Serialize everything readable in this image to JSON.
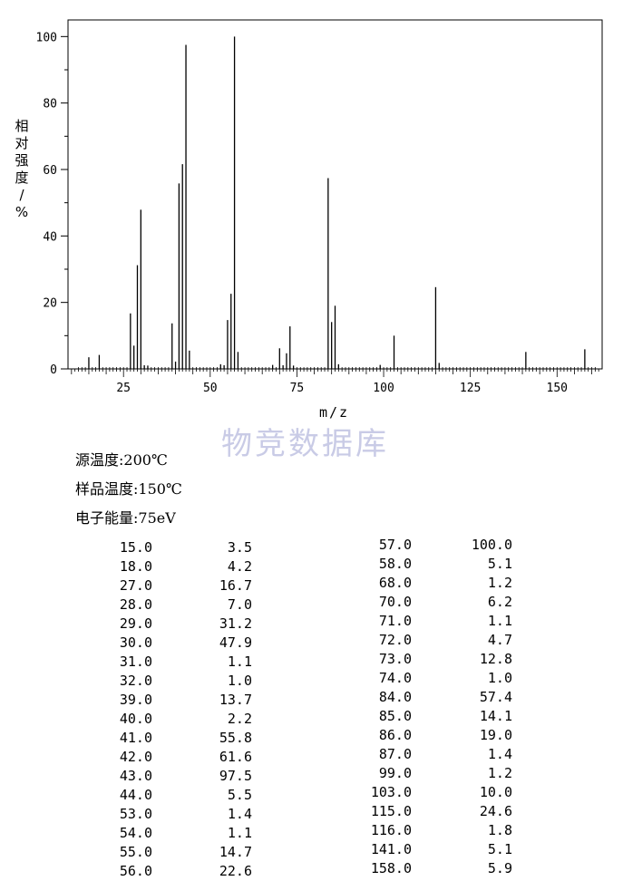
{
  "chart_data": {
    "type": "bar",
    "xlabel": "m/z",
    "ylabel": "相对强度/%",
    "xlim": [
      9,
      163
    ],
    "ylim": [
      0,
      105
    ],
    "xticks": [
      25,
      50,
      75,
      100,
      125,
      150
    ],
    "yticks": [
      0,
      20,
      40,
      60,
      80,
      100
    ],
    "grid": false,
    "peaks": [
      {
        "mz": 15.0,
        "intensity": 3.5
      },
      {
        "mz": 18.0,
        "intensity": 4.2
      },
      {
        "mz": 27.0,
        "intensity": 16.7
      },
      {
        "mz": 28.0,
        "intensity": 7.0
      },
      {
        "mz": 29.0,
        "intensity": 31.2
      },
      {
        "mz": 30.0,
        "intensity": 47.9
      },
      {
        "mz": 31.0,
        "intensity": 1.1
      },
      {
        "mz": 32.0,
        "intensity": 1.0
      },
      {
        "mz": 39.0,
        "intensity": 13.7
      },
      {
        "mz": 40.0,
        "intensity": 2.2
      },
      {
        "mz": 41.0,
        "intensity": 55.8
      },
      {
        "mz": 42.0,
        "intensity": 61.6
      },
      {
        "mz": 43.0,
        "intensity": 97.5
      },
      {
        "mz": 44.0,
        "intensity": 5.5
      },
      {
        "mz": 53.0,
        "intensity": 1.4
      },
      {
        "mz": 54.0,
        "intensity": 1.1
      },
      {
        "mz": 55.0,
        "intensity": 14.7
      },
      {
        "mz": 56.0,
        "intensity": 22.6
      },
      {
        "mz": 57.0,
        "intensity": 100.0
      },
      {
        "mz": 58.0,
        "intensity": 5.1
      },
      {
        "mz": 68.0,
        "intensity": 1.2
      },
      {
        "mz": 70.0,
        "intensity": 6.2
      },
      {
        "mz": 71.0,
        "intensity": 1.1
      },
      {
        "mz": 72.0,
        "intensity": 4.7
      },
      {
        "mz": 73.0,
        "intensity": 12.8
      },
      {
        "mz": 74.0,
        "intensity": 1.0
      },
      {
        "mz": 84.0,
        "intensity": 57.4
      },
      {
        "mz": 85.0,
        "intensity": 14.1
      },
      {
        "mz": 86.0,
        "intensity": 19.0
      },
      {
        "mz": 87.0,
        "intensity": 1.4
      },
      {
        "mz": 99.0,
        "intensity": 1.2
      },
      {
        "mz": 103.0,
        "intensity": 10.0
      },
      {
        "mz": 115.0,
        "intensity": 24.6
      },
      {
        "mz": 116.0,
        "intensity": 1.8
      },
      {
        "mz": 141.0,
        "intensity": 5.1
      },
      {
        "mz": 158.0,
        "intensity": 5.9
      }
    ]
  },
  "watermark": "物竞数据库",
  "conditions": [
    "源温度:200℃",
    "样品温度:150℃",
    "电子能量:75eV"
  ],
  "table_left": [
    [
      "15.0",
      "3.5"
    ],
    [
      "18.0",
      "4.2"
    ],
    [
      "27.0",
      "16.7"
    ],
    [
      "28.0",
      "7.0"
    ],
    [
      "29.0",
      "31.2"
    ],
    [
      "30.0",
      "47.9"
    ],
    [
      "31.0",
      "1.1"
    ],
    [
      "32.0",
      "1.0"
    ],
    [
      "39.0",
      "13.7"
    ],
    [
      "40.0",
      "2.2"
    ],
    [
      "41.0",
      "55.8"
    ],
    [
      "42.0",
      "61.6"
    ],
    [
      "43.0",
      "97.5"
    ],
    [
      "44.0",
      "5.5"
    ],
    [
      "53.0",
      "1.4"
    ],
    [
      "54.0",
      "1.1"
    ],
    [
      "55.0",
      "14.7"
    ],
    [
      "56.0",
      "22.6"
    ]
  ],
  "table_right": [
    [
      "57.0",
      "100.0"
    ],
    [
      "58.0",
      "5.1"
    ],
    [
      "68.0",
      "1.2"
    ],
    [
      "70.0",
      "6.2"
    ],
    [
      "71.0",
      "1.1"
    ],
    [
      "72.0",
      "4.7"
    ],
    [
      "73.0",
      "12.8"
    ],
    [
      "74.0",
      "1.0"
    ],
    [
      "84.0",
      "57.4"
    ],
    [
      "85.0",
      "14.1"
    ],
    [
      "86.0",
      "19.0"
    ],
    [
      "87.0",
      "1.4"
    ],
    [
      "99.0",
      "1.2"
    ],
    [
      "103.0",
      "10.0"
    ],
    [
      "115.0",
      "24.6"
    ],
    [
      "116.0",
      "1.8"
    ],
    [
      "141.0",
      "5.1"
    ],
    [
      "158.0",
      "5.9"
    ]
  ]
}
